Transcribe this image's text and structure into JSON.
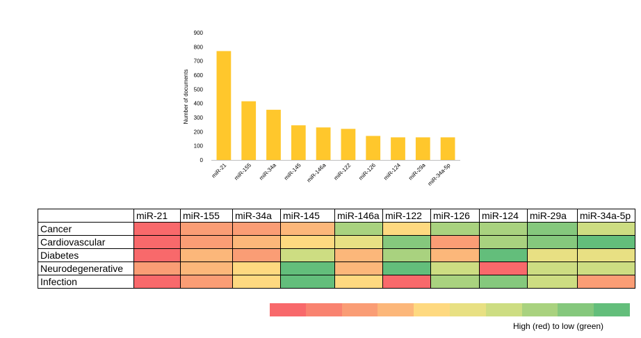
{
  "chart_data": [
    {
      "type": "bar",
      "title": "",
      "xlabel": "",
      "ylabel": "Number of documents",
      "ylim": [
        0,
        900
      ],
      "yticks": [
        0,
        100,
        200,
        300,
        400,
        500,
        600,
        700,
        800,
        900
      ],
      "grid": false,
      "categories": [
        "miR-21",
        "miR-155",
        "miR-34a",
        "miR-145",
        "miR-146a",
        "miR-122",
        "miR-126",
        "miR-124",
        "miR-29a",
        "miR-34a-5p"
      ],
      "values": [
        770,
        415,
        355,
        245,
        230,
        220,
        170,
        160,
        160,
        160
      ],
      "color": "#FFC72C"
    },
    {
      "type": "heatmap",
      "columns": [
        "miR-21",
        "miR-155",
        "miR-34a",
        "miR-145",
        "miR-146a",
        "miR-122",
        "miR-126",
        "miR-124",
        "miR-29a",
        "miR-34a-5p"
      ],
      "rows": [
        "Cancer",
        "Cardiovascular",
        "Diabetes",
        "Neurodegenerative",
        "Infection"
      ],
      "levels": [
        [
          10,
          8,
          8,
          7,
          3,
          6,
          3,
          3,
          2,
          4
        ],
        [
          10,
          8,
          7,
          6,
          5,
          2,
          8,
          3,
          2,
          1
        ],
        [
          10,
          7,
          8,
          4,
          7,
          3,
          7,
          1,
          5,
          5
        ],
        [
          8,
          7,
          6,
          1,
          7,
          1,
          4,
          10,
          4,
          4
        ],
        [
          10,
          8,
          6,
          1,
          6,
          10,
          3,
          2,
          4,
          8
        ]
      ],
      "level_meaning": "1 = lowest (green) ... 10 = highest (red)",
      "scale_colors": [
        "#F8696B",
        "#F98370",
        "#FA9D75",
        "#FCB77A",
        "#FED980",
        "#E8E083",
        "#CDDD82",
        "#A9D27F",
        "#85C87D",
        "#63BE7B"
      ],
      "scale_caption": "High (red) to low (green)"
    }
  ]
}
